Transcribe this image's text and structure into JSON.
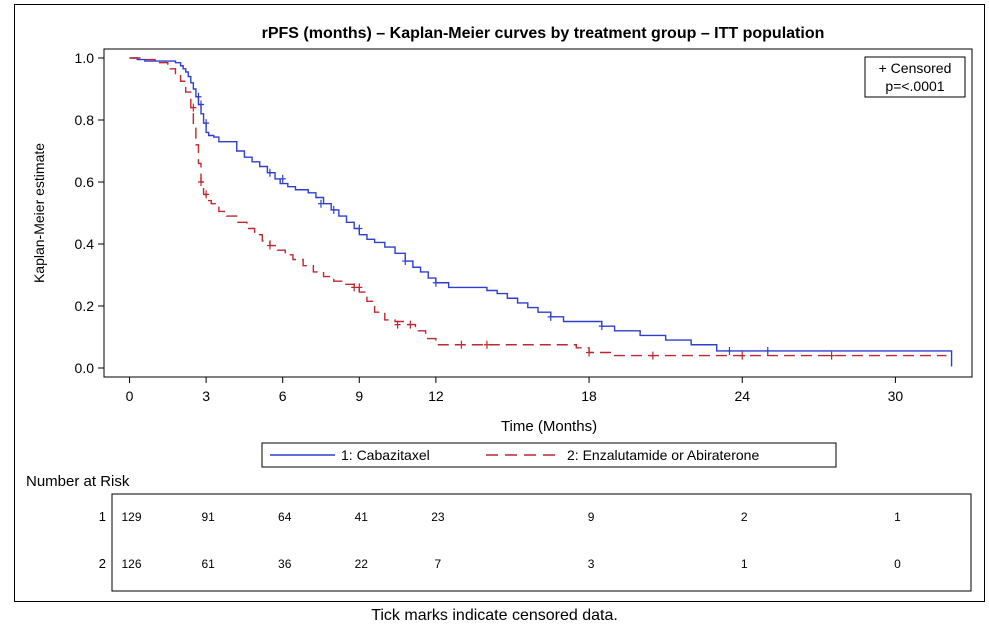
{
  "caption": "Tick marks indicate censored data.",
  "colors": {
    "series1": "#2e3fd0",
    "series2": "#c0262e",
    "axis": "#000000"
  },
  "chart_data": {
    "type": "line",
    "title": "rPFS (months) – Kaplan-Meier curves by treatment group – ITT population",
    "xlabel": "Time (Months)",
    "ylabel": "Kaplan-Meier estimate",
    "xlim": [
      -1,
      33
    ],
    "ylim": [
      0,
      1
    ],
    "xticks": [
      0,
      3,
      6,
      9,
      12,
      18,
      24,
      30
    ],
    "yticks": [
      0.0,
      0.2,
      0.4,
      0.6,
      0.8,
      1.0
    ],
    "ytick_labels": [
      "0.0",
      "0.2",
      "0.4",
      "0.6",
      "0.8",
      "1.0"
    ],
    "grid": false,
    "step": true,
    "inset_legend": {
      "line1": "+ Censored",
      "line2": "p=<.0001"
    },
    "legend_position": "bottom",
    "series": [
      {
        "name": "1: Cabazitaxel",
        "style": "solid",
        "x": [
          0,
          0.3,
          0.6,
          1.0,
          1.4,
          1.8,
          2.0,
          2.1,
          2.2,
          2.3,
          2.4,
          2.5,
          2.6,
          2.7,
          2.8,
          2.9,
          3.0,
          3.1,
          3.3,
          3.5,
          4.2,
          4.5,
          4.8,
          5.1,
          5.4,
          5.7,
          5.9,
          6.2,
          6.5,
          7.0,
          7.3,
          7.6,
          7.9,
          8.2,
          8.5,
          8.8,
          9.0,
          9.3,
          9.6,
          10.0,
          10.4,
          10.8,
          11.1,
          11.4,
          11.7,
          12.0,
          12.5,
          14.0,
          14.4,
          14.8,
          15.2,
          15.6,
          16.0,
          16.5,
          17.0,
          18.5,
          19.0,
          20.0,
          21.0,
          22.0,
          23.0,
          32.0,
          32.2
        ],
        "y": [
          1.0,
          0.995,
          0.99,
          0.99,
          0.99,
          0.985,
          0.975,
          0.965,
          0.955,
          0.94,
          0.92,
          0.9,
          0.875,
          0.85,
          0.82,
          0.79,
          0.76,
          0.75,
          0.745,
          0.73,
          0.7,
          0.68,
          0.665,
          0.65,
          0.63,
          0.61,
          0.595,
          0.585,
          0.575,
          0.565,
          0.55,
          0.53,
          0.51,
          0.49,
          0.47,
          0.45,
          0.43,
          0.415,
          0.405,
          0.39,
          0.37,
          0.345,
          0.325,
          0.31,
          0.29,
          0.275,
          0.26,
          0.25,
          0.24,
          0.225,
          0.21,
          0.195,
          0.18,
          0.165,
          0.15,
          0.135,
          0.12,
          0.105,
          0.09,
          0.075,
          0.055,
          0.055,
          0.005
        ],
        "censor_x": [
          2.7,
          2.8,
          3.0,
          5.5,
          6.0,
          7.5,
          8.0,
          9.0,
          10.8,
          12.0,
          16.5,
          18.5,
          23.5,
          25.0
        ],
        "censor_y": [
          0.875,
          0.85,
          0.79,
          0.63,
          0.61,
          0.53,
          0.51,
          0.45,
          0.345,
          0.275,
          0.165,
          0.135,
          0.055,
          0.055
        ]
      },
      {
        "name": "2: Enzalutamide or Abiraterone",
        "style": "dashed",
        "x": [
          0,
          0.5,
          1.0,
          1.5,
          1.8,
          2.0,
          2.2,
          2.4,
          2.5,
          2.6,
          2.7,
          2.8,
          2.9,
          3.0,
          3.2,
          3.5,
          3.8,
          4.2,
          4.6,
          4.9,
          5.2,
          5.5,
          5.8,
          6.1,
          6.4,
          6.8,
          7.2,
          7.6,
          8.0,
          8.4,
          8.8,
          9.0,
          9.3,
          9.6,
          10.0,
          10.4,
          10.8,
          11.2,
          11.6,
          12.0,
          14.5,
          17.5,
          18.0,
          19.0,
          32.0
        ],
        "y": [
          1.0,
          0.995,
          0.985,
          0.965,
          0.95,
          0.925,
          0.89,
          0.84,
          0.78,
          0.72,
          0.66,
          0.6,
          0.56,
          0.54,
          0.53,
          0.505,
          0.49,
          0.47,
          0.45,
          0.43,
          0.41,
          0.395,
          0.38,
          0.365,
          0.35,
          0.33,
          0.31,
          0.295,
          0.28,
          0.27,
          0.26,
          0.245,
          0.215,
          0.18,
          0.155,
          0.15,
          0.14,
          0.12,
          0.095,
          0.075,
          0.075,
          0.065,
          0.05,
          0.04,
          0.04
        ],
        "censor_x": [
          2.5,
          2.8,
          3.0,
          5.5,
          8.8,
          9.0,
          10.5,
          11.0,
          13.0,
          14.0,
          18.0,
          20.5,
          24.0,
          27.5
        ],
        "censor_y": [
          0.84,
          0.6,
          0.56,
          0.395,
          0.26,
          0.26,
          0.14,
          0.14,
          0.075,
          0.075,
          0.05,
          0.04,
          0.04,
          0.04
        ]
      }
    ],
    "risk_table": {
      "title": "Number at Risk",
      "times": [
        0,
        3,
        6,
        9,
        12,
        18,
        24,
        30
      ],
      "rows": [
        {
          "label": "1",
          "values": [
            "129",
            "91",
            "64",
            "41",
            "23",
            "9",
            "2",
            "1"
          ]
        },
        {
          "label": "2",
          "values": [
            "126",
            "61",
            "36",
            "22",
            "7",
            "3",
            "1",
            "0"
          ]
        }
      ]
    }
  }
}
